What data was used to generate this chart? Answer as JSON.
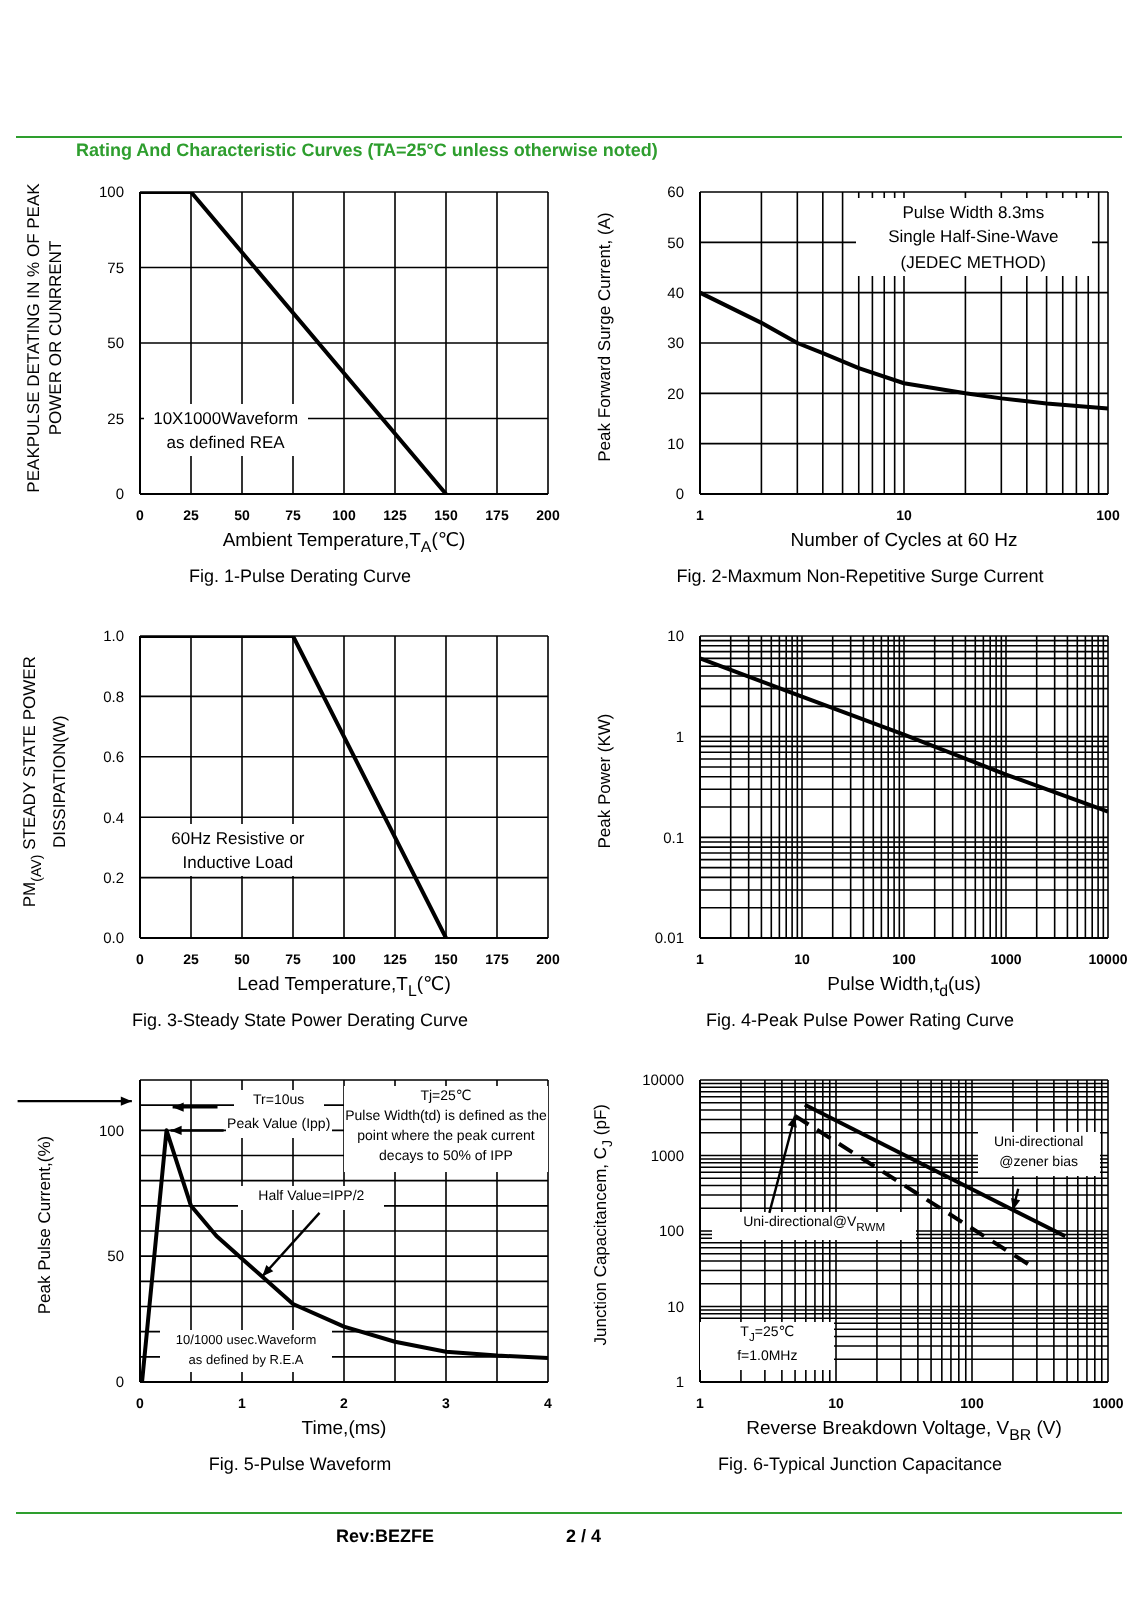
{
  "chart_data": [
    {
      "type": "line",
      "title": "Fig. 1-Pulse Derating Curve",
      "subtitle": "Rating And Characteristic Curves (TA=25°C unless otherwise noted)",
      "xlabel": "Ambient Temperature,T$_{A}$(℃)",
      "ylabel": "PEAKPULSE DETATING IN % OF PEAK POWER OR CUNRRENT",
      "annotations": [
        "10X1000Waveform",
        "as defined REA"
      ],
      "series": [
        {
          "color": "#000000",
          "x": [
            0,
            25,
            150
          ],
          "values": [
            100,
            100,
            0
          ]
        }
      ],
      "xlim": [
        0,
        200
      ],
      "xticks": [
        0,
        25,
        50,
        75,
        100,
        125,
        150,
        175,
        200
      ],
      "ylim": [
        0,
        100
      ],
      "yticks": [
        0,
        25,
        50,
        75,
        100
      ],
      "grid": true,
      "marker": "none",
      "line_style": "solid"
    },
    {
      "type": "line",
      "title": "Fig. 2-Maxmum Non-Repetitive Surge Current",
      "xlabel": "Number of Cycles at 60 Hz",
      "ylabel": "Peak Forward Surge Current, (A)",
      "annotations": [
        "Pulse Width 8.3ms",
        "Single Half-Sine-Wave",
        "(JEDEC METHOD)"
      ],
      "series": [
        {
          "color": "#000000",
          "x": [
            1,
            2,
            3,
            4,
            6,
            10,
            20,
            30,
            50,
            100
          ],
          "values": [
            40,
            34,
            30,
            28,
            25,
            22,
            20,
            19,
            18,
            17
          ]
        }
      ],
      "log": "x",
      "xlim": [
        1,
        100
      ],
      "xticks": [
        1,
        {
          "value": 2,
          "label": null
        },
        {
          "value": 3,
          "label": null
        },
        {
          "value": 4,
          "label": null
        },
        {
          "value": 5,
          "label": null
        },
        {
          "value": 6,
          "label": null
        },
        {
          "value": 7,
          "label": null
        },
        {
          "value": 8,
          "label": null
        },
        {
          "value": 9,
          "label": null
        },
        10,
        {
          "value": 20,
          "label": null
        },
        {
          "value": 30,
          "label": null
        },
        {
          "value": 40,
          "label": null
        },
        {
          "value": 50,
          "label": null
        },
        {
          "value": 60,
          "label": null
        },
        {
          "value": 70,
          "label": null
        },
        {
          "value": 80,
          "label": null
        },
        {
          "value": 90,
          "label": null
        },
        100
      ],
      "ylim": [
        0,
        60
      ],
      "yticks": [
        0,
        10,
        20,
        30,
        40,
        50,
        60
      ],
      "grid": true,
      "marker": "none",
      "line_style": "solid"
    },
    {
      "type": "line",
      "title": "Fig. 3-Steady State Power Derating Curve",
      "xlabel": "Lead Temperature,T$_{L}$(℃)",
      "ylabel": "PM$_{(AV)}$ STEADY STATE POWER DISSIPATION(W)",
      "annotations": [
        "60Hz Resistive or",
        "Inductive Load"
      ],
      "series": [
        {
          "color": "#000000",
          "x": [
            0,
            75,
            150
          ],
          "values": [
            1,
            1,
            0
          ]
        }
      ],
      "xlim": [
        0,
        200
      ],
      "xticks": [
        0,
        25,
        50,
        75,
        100,
        125,
        150,
        175,
        200
      ],
      "ylim": [
        0,
        1
      ],
      "yticks": [
        {
          "value": 0,
          "label": "0.0"
        },
        0.2,
        0.4,
        0.6,
        0.8,
        {
          "value": 1,
          "label": "1.0"
        }
      ],
      "grid": true,
      "marker": "none",
      "line_style": "solid"
    },
    {
      "type": "line",
      "title": "Fig. 4-Peak Pulse Power  Rating Curve",
      "xlabel": "Pulse Width,t$_{d}$(us)",
      "ylabel": "Peak Power (KW)",
      "series": [
        {
          "color": "#000000",
          "x": [
            1,
            10,
            100,
            1000,
            10000
          ],
          "values": [
            6,
            2.5,
            1.05,
            0.42,
            0.18
          ]
        }
      ],
      "log": "xy",
      "xlim": [
        1,
        10000
      ],
      "xticks": [
        1,
        {
          "value": 2,
          "label": null
        },
        {
          "value": 3,
          "label": null
        },
        {
          "value": 4,
          "label": null
        },
        {
          "value": 5,
          "label": null
        },
        {
          "value": 6,
          "label": null
        },
        {
          "value": 7,
          "label": null
        },
        {
          "value": 8,
          "label": null
        },
        {
          "value": 9,
          "label": null
        },
        10,
        {
          "value": 20,
          "label": null
        },
        {
          "value": 30,
          "label": null
        },
        {
          "value": 40,
          "label": null
        },
        {
          "value": 50,
          "label": null
        },
        {
          "value": 60,
          "label": null
        },
        {
          "value": 70,
          "label": null
        },
        {
          "value": 80,
          "label": null
        },
        {
          "value": 90,
          "label": null
        },
        100,
        {
          "value": 200,
          "label": null
        },
        {
          "value": 300,
          "label": null
        },
        {
          "value": 400,
          "label": null
        },
        {
          "value": 500,
          "label": null
        },
        {
          "value": 600,
          "label": null
        },
        {
          "value": 700,
          "label": null
        },
        {
          "value": 800,
          "label": null
        },
        {
          "value": 900,
          "label": null
        },
        1000,
        {
          "value": 2000,
          "label": null
        },
        {
          "value": 3000,
          "label": null
        },
        {
          "value": 4000,
          "label": null
        },
        {
          "value": 5000,
          "label": null
        },
        {
          "value": 6000,
          "label": null
        },
        {
          "value": 7000,
          "label": null
        },
        {
          "value": 8000,
          "label": null
        },
        {
          "value": 9000,
          "label": null
        },
        10000
      ],
      "ylim": [
        0.01,
        10
      ],
      "yticks": [
        0.01,
        {
          "value": 0.02,
          "label": null
        },
        {
          "value": 0.03,
          "label": null
        },
        {
          "value": 0.04,
          "label": null
        },
        {
          "value": 0.05,
          "label": null
        },
        {
          "value": 0.06,
          "label": null
        },
        {
          "value": 0.07,
          "label": null
        },
        {
          "value": 0.08,
          "label": null
        },
        {
          "value": 0.09,
          "label": null
        },
        0.1,
        {
          "value": 0.2,
          "label": null
        },
        {
          "value": 0.3,
          "label": null
        },
        {
          "value": 0.4,
          "label": null
        },
        {
          "value": 0.5,
          "label": null
        },
        {
          "value": 0.6,
          "label": null
        },
        {
          "value": 0.7,
          "label": null
        },
        {
          "value": 0.8,
          "label": null
        },
        {
          "value": 0.9,
          "label": null
        },
        1,
        {
          "value": 2,
          "label": null
        },
        {
          "value": 3,
          "label": null
        },
        {
          "value": 4,
          "label": null
        },
        {
          "value": 5,
          "label": null
        },
        {
          "value": 6,
          "label": null
        },
        {
          "value": 7,
          "label": null
        },
        {
          "value": 8,
          "label": null
        },
        {
          "value": 9,
          "label": null
        },
        10
      ],
      "grid": true,
      "marker": "none",
      "line_style": "solid"
    },
    {
      "type": "line",
      "title": "Fig. 5-Pulse Waveform",
      "xlabel": "Time,(ms)",
      "ylabel": "Peak Pulse Current,(%)",
      "annotations": [
        "Tr=10us",
        "Peak Value (Ipp)",
        "Tj=25℃",
        "Pulse Width(td) is defined as the point where the peak current decays to 50% of IPP",
        {
          "text": "Half Value=IPP/2",
          "x": 1.2,
          "y": 42
        },
        "10/1000 usec.Waveform",
        "as defined by R.E.A"
      ],
      "series": [
        {
          "color": "#000000",
          "x": [
            0.02,
            0.26,
            0.5,
            0.75,
            1,
            1.25,
            1.5,
            2,
            2.5,
            3,
            3.5,
            4
          ],
          "values": [
            0,
            100,
            70,
            58,
            49,
            40,
            31,
            22,
            16,
            12,
            10.5,
            9.5
          ]
        }
      ],
      "xlim": [
        0,
        4
      ],
      "xticks": [
        0,
        {
          "value": 0.5,
          "label": null
        },
        1,
        {
          "value": 1.5,
          "label": null
        },
        2,
        {
          "value": 2.5,
          "label": null
        },
        3,
        {
          "value": 3.5,
          "label": null
        },
        4
      ],
      "ylim": [
        0,
        120
      ],
      "yticks": [
        0,
        {
          "value": 10,
          "label": null
        },
        {
          "value": 20,
          "label": null
        },
        {
          "value": 30,
          "label": null
        },
        {
          "value": 40,
          "label": null
        },
        50,
        {
          "value": 60,
          "label": null
        },
        {
          "value": 70,
          "label": null
        },
        {
          "value": 80,
          "label": null
        },
        {
          "value": 90,
          "label": null
        },
        100,
        {
          "value": 110,
          "label": null
        },
        {
          "value": 120,
          "label": null
        }
      ],
      "grid": true,
      "marker": "none",
      "line_style": "solid"
    },
    {
      "type": "line",
      "title": "Fig. 6-Typical Junction Capacitance",
      "xlabel": "Reverse Breakdown Voltage, V$_{BR}$ (V)",
      "ylabel": "Junction Capacitancem, C$_{J}$ (pF)",
      "annotations": [
        "Uni-directional",
        {
          "text": "@zener bias",
          "x": 200,
          "y": 190
        },
        {
          "text": "Uni-directional@V$_{RWM}$",
          "x": 5,
          "y": 3350
        },
        "T$_{J}$=25℃",
        "f=1.0MHz",
        "Rev:BEZFE",
        "2 / 4"
      ],
      "series": [
        {
          "color": "#000000",
          "x": [
            5.9,
            485
          ],
          "values": [
            4700,
            85
          ],
          "line_style": "solid"
        },
        {
          "color": "#000000",
          "x": [
            5,
            298
          ],
          "values": [
            3350,
            31
          ],
          "line_style": "dashed"
        }
      ],
      "log": "xy",
      "xlim": [
        1,
        1000
      ],
      "xticks": [
        1,
        {
          "value": 2,
          "label": null
        },
        {
          "value": 3,
          "label": null
        },
        {
          "value": 4,
          "label": null
        },
        {
          "value": 5,
          "label": null
        },
        {
          "value": 6,
          "label": null
        },
        {
          "value": 7,
          "label": null
        },
        {
          "value": 8,
          "label": null
        },
        {
          "value": 9,
          "label": null
        },
        10,
        {
          "value": 20,
          "label": null
        },
        {
          "value": 30,
          "label": null
        },
        {
          "value": 40,
          "label": null
        },
        {
          "value": 50,
          "label": null
        },
        {
          "value": 60,
          "label": null
        },
        {
          "value": 70,
          "label": null
        },
        {
          "value": 80,
          "label": null
        },
        {
          "value": 90,
          "label": null
        },
        100,
        {
          "value": 200,
          "label": null
        },
        {
          "value": 300,
          "label": null
        },
        {
          "value": 400,
          "label": null
        },
        {
          "value": 500,
          "label": null
        },
        {
          "value": 600,
          "label": null
        },
        {
          "value": 700,
          "label": null
        },
        {
          "value": 800,
          "label": null
        },
        {
          "value": 900,
          "label": null
        },
        1000
      ],
      "ylim": [
        1,
        10000
      ],
      "yticks": [
        1,
        {
          "value": 2,
          "label": null
        },
        {
          "value": 3,
          "label": null
        },
        {
          "value": 4,
          "label": null
        },
        {
          "value": 5,
          "label": null
        },
        {
          "value": 6,
          "label": null
        },
        {
          "value": 7,
          "label": null
        },
        {
          "value": 8,
          "label": null
        },
        {
          "value": 9,
          "label": null
        },
        10,
        {
          "value": 20,
          "label": null
        },
        {
          "value": 30,
          "label": null
        },
        {
          "value": 40,
          "label": null
        },
        {
          "value": 50,
          "label": null
        },
        {
          "value": 60,
          "label": null
        },
        {
          "value": 70,
          "label": null
        },
        {
          "value": 80,
          "label": null
        },
        {
          "value": 90,
          "label": null
        },
        100,
        {
          "value": 200,
          "label": null
        },
        {
          "value": 300,
          "label": null
        },
        {
          "value": 400,
          "label": null
        },
        {
          "value": 500,
          "label": null
        },
        {
          "value": 600,
          "label": null
        },
        {
          "value": 700,
          "label": null
        },
        {
          "value": 800,
          "label": null
        },
        {
          "value": 900,
          "label": null
        },
        1000,
        {
          "value": 2000,
          "label": null
        },
        {
          "value": 3000,
          "label": null
        },
        {
          "value": 4000,
          "label": null
        },
        {
          "value": 5000,
          "label": null
        },
        {
          "value": 6000,
          "label": null
        },
        {
          "value": 7000,
          "label": null
        },
        {
          "value": 8000,
          "label": null
        },
        {
          "value": 9000,
          "label": null
        },
        10000
      ],
      "grid": true,
      "marker": "none"
    }
  ]
}
